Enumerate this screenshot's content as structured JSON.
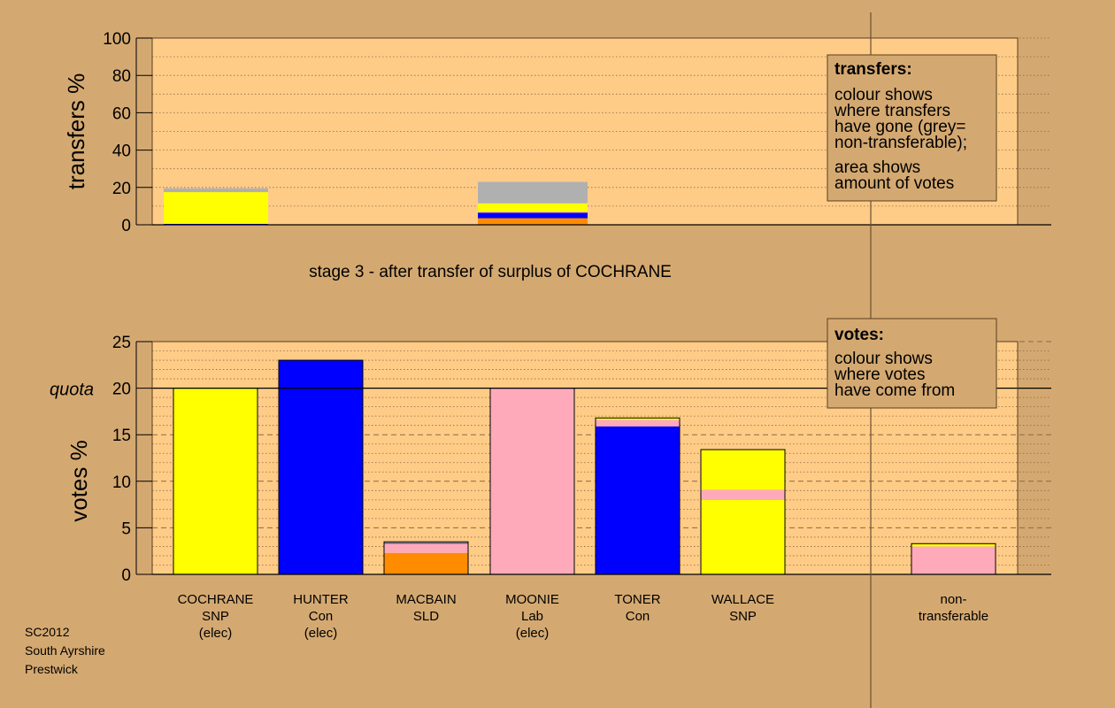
{
  "subtitle": "stage 3 - after transfer of surplus of COCHRANE",
  "footer": [
    "SC2012",
    "South Ayrshire",
    "Prestwick"
  ],
  "colors": {
    "background": "#d4a971",
    "plot_bg": "#ffcc88",
    "SNP": "#ffff00",
    "Con": "#0000ff",
    "Lab": "#ffaabb",
    "SLD": "#ff8c00",
    "nontransferable": "#b0b0b0"
  },
  "chart_data": [
    {
      "type": "bar",
      "name": "transfers",
      "ylabel": "transfers %",
      "ylim": [
        0,
        100
      ],
      "yticks": [
        0,
        20,
        40,
        60,
        80,
        100
      ],
      "grid": "dotted horizontal",
      "legend": {
        "title": "transfers:",
        "lines": [
          "colour shows",
          "where transfers",
          "have gone (grey=",
          "non-transferable);",
          "area shows",
          "amount of votes"
        ]
      },
      "bars": [
        {
          "stack": [
            {
              "party": "Con",
              "color": "#0000ff",
              "value": 0.5
            },
            {
              "party": "SNP",
              "color": "#ffff00",
              "value": 17.0
            },
            {
              "party": "non-transferable",
              "color": "#b0b0b0",
              "value": 2.0
            }
          ]
        },
        {
          "stack": [
            {
              "party": "SLD",
              "color": "#ff8c00",
              "value": 3.5
            },
            {
              "party": "Con",
              "color": "#0000ff",
              "value": 3.0
            },
            {
              "party": "Lab",
              "color": "#ffaabb",
              "value": 0.5
            },
            {
              "party": "SNP",
              "color": "#ffff00",
              "value": 4.5
            },
            {
              "party": "non-transferable",
              "color": "#b0b0b0",
              "value": 11.5
            }
          ]
        }
      ]
    },
    {
      "type": "bar",
      "name": "votes",
      "ylabel": "votes %",
      "ylim": [
        0,
        25
      ],
      "yticks": [
        0,
        5,
        10,
        15,
        20,
        25
      ],
      "quota": {
        "value": 20,
        "label": "quota"
      },
      "grid": "dashed at 5s, dotted at 1s",
      "legend": {
        "title": "votes:",
        "lines": [
          "colour shows",
          "where votes",
          "have come from"
        ]
      },
      "candidates": [
        {
          "lines": [
            "COCHRANE",
            "SNP",
            "(elec)"
          ],
          "stack": [
            {
              "party": "SNP",
              "color": "#ffff00",
              "value": 20.0
            }
          ]
        },
        {
          "lines": [
            "HUNTER",
            "Con",
            "(elec)"
          ],
          "stack": [
            {
              "party": "Con",
              "color": "#0000ff",
              "value": 23.0
            }
          ]
        },
        {
          "lines": [
            "MACBAIN",
            "SLD"
          ],
          "stack": [
            {
              "party": "SLD",
              "color": "#ff8c00",
              "value": 2.3
            },
            {
              "party": "Lab",
              "color": "#ffaabb",
              "value": 1.0
            },
            {
              "party": "Con",
              "color": "#0000ff",
              "value": 0.1
            },
            {
              "party": "SNP",
              "color": "#ffff00",
              "value": 0.1
            }
          ]
        },
        {
          "lines": [
            "MOONIE",
            "Lab",
            "(elec)"
          ],
          "stack": [
            {
              "party": "Lab",
              "color": "#ffaabb",
              "value": 20.0
            }
          ]
        },
        {
          "lines": [
            "TONER",
            "Con"
          ],
          "stack": [
            {
              "party": "Con",
              "color": "#0000ff",
              "value": 15.9
            },
            {
              "party": "Lab",
              "color": "#ffaabb",
              "value": 0.7
            },
            {
              "party": "SNP",
              "color": "#ffff00",
              "value": 0.2
            }
          ]
        },
        {
          "lines": [
            "WALLACE",
            "SNP"
          ],
          "stack": [
            {
              "party": "SNP",
              "color": "#ffff00",
              "value": 8.0
            },
            {
              "party": "Lab",
              "color": "#ffaabb",
              "value": 1.1
            },
            {
              "party": "SNP",
              "color": "#ffff00",
              "value": 4.3
            }
          ]
        },
        {
          "lines": [
            "non-",
            "transferable"
          ],
          "stack": [
            {
              "party": "Lab",
              "color": "#ffaabb",
              "value": 3.0
            },
            {
              "party": "SNP",
              "color": "#ffff00",
              "value": 0.3
            }
          ]
        }
      ]
    }
  ]
}
